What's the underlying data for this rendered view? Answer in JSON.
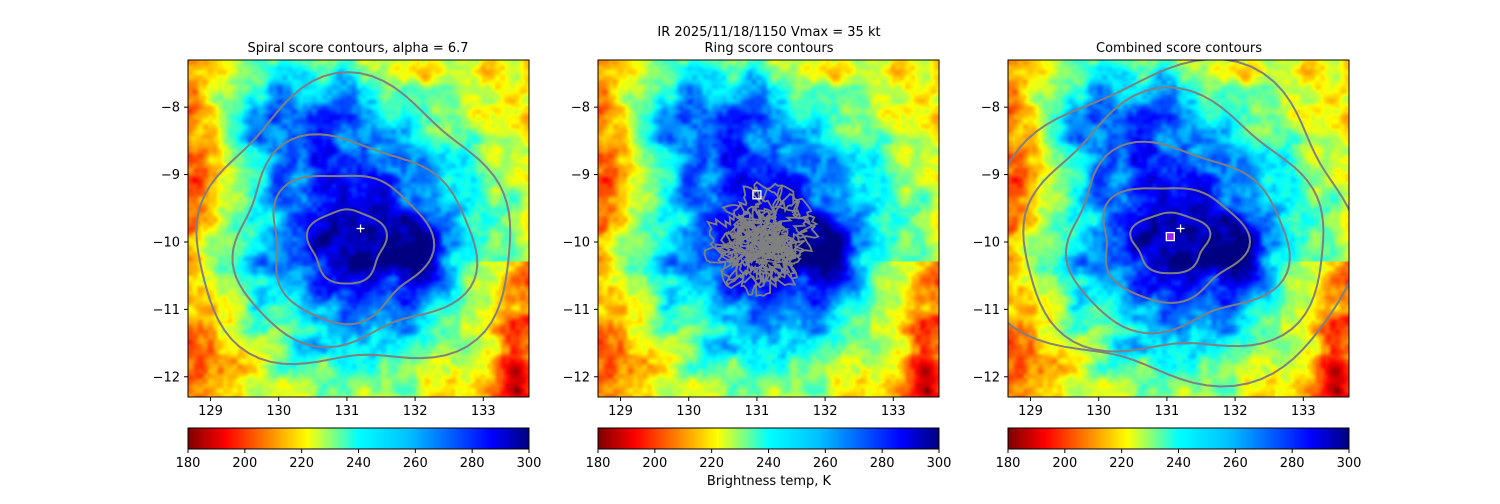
{
  "suptitle": "IR  2025/11/18/1150    Vmax = 35 kt",
  "colorbar_label": "Brightness temp, K",
  "chart_data": [
    {
      "type": "heatmap",
      "title": "Spiral score contours, alpha =  6.7",
      "x_ticks": [
        129,
        130,
        131,
        132,
        133
      ],
      "y_ticks": [
        -8,
        -9,
        -10,
        -11,
        -12
      ],
      "xlim": [
        128.67,
        133.67
      ],
      "ylim": [
        -12.3,
        -7.3
      ],
      "colormap": "jet",
      "colorbar_ticks": [
        180,
        200,
        220,
        240,
        260,
        280,
        300
      ],
      "clim": [
        180,
        300
      ],
      "center": {
        "lon": 131.2,
        "lat": -9.8
      },
      "markers": [
        {
          "symbol": "plus",
          "lon": 131.2,
          "lat": -9.8,
          "color": "#ffffff"
        }
      ],
      "contour_style": "spiral",
      "contours": [
        {
          "level": 1,
          "lon_c": 131.0,
          "lat_c": -10.05,
          "rx": 0.55,
          "ry": 0.55
        },
        {
          "level": 2,
          "lon_c": 131.0,
          "lat_c": -10.05,
          "rx": 1.15,
          "ry": 1.1
        },
        {
          "level": 3,
          "lon_c": 131.05,
          "lat_c": -10.0,
          "rx": 1.75,
          "ry": 1.5
        },
        {
          "level": 4,
          "lon_c": 131.1,
          "lat_c": -9.85,
          "rx": 2.3,
          "ry": 2.1
        }
      ]
    },
    {
      "type": "heatmap",
      "title": "Ring score contours",
      "x_ticks": [
        129,
        130,
        131,
        132,
        133
      ],
      "y_ticks": [
        -8,
        -9,
        -10,
        -11,
        -12
      ],
      "xlim": [
        128.67,
        133.67
      ],
      "ylim": [
        -12.3,
        -7.3
      ],
      "colormap": "jet",
      "colorbar_ticks": [
        180,
        200,
        220,
        240,
        260,
        280,
        300
      ],
      "clim": [
        180,
        300
      ],
      "markers": [
        {
          "symbol": "square",
          "lon": 131.0,
          "lat": -9.3,
          "color": "#ffffff"
        }
      ],
      "contour_style": "noisy",
      "noisy_region": {
        "lon_c": 131.05,
        "lat_c": -9.95,
        "r": 0.85
      }
    },
    {
      "type": "heatmap",
      "title": "Combined score contours",
      "x_ticks": [
        129,
        130,
        131,
        132,
        133
      ],
      "y_ticks": [
        -8,
        -9,
        -10,
        -11,
        -12
      ],
      "xlim": [
        128.67,
        133.67
      ],
      "ylim": [
        -12.3,
        -7.3
      ],
      "colormap": "jet",
      "colorbar_ticks": [
        180,
        200,
        220,
        240,
        260,
        280,
        300
      ],
      "clim": [
        180,
        300
      ],
      "markers": [
        {
          "symbol": "plus",
          "lon": 131.2,
          "lat": -9.8,
          "color": "#ffffff"
        },
        {
          "symbol": "square",
          "lon": 131.05,
          "lat": -9.92,
          "color": "#a020f0"
        }
      ],
      "contour_style": "spiral",
      "contours": [
        {
          "level": 1,
          "lon_c": 131.05,
          "lat_c": -10.0,
          "rx": 0.55,
          "ry": 0.45
        },
        {
          "level": 2,
          "lon_c": 131.05,
          "lat_c": -10.0,
          "rx": 1.05,
          "ry": 0.85
        },
        {
          "level": 3,
          "lon_c": 131.1,
          "lat_c": -9.95,
          "rx": 1.6,
          "ry": 1.35
        },
        {
          "level": 4,
          "lon_c": 131.1,
          "lat_c": -9.85,
          "rx": 2.2,
          "ry": 1.9
        },
        {
          "level": 5,
          "lon_c": 131.1,
          "lat_c": -9.8,
          "rx": 2.7,
          "ry": 2.3
        }
      ]
    }
  ]
}
